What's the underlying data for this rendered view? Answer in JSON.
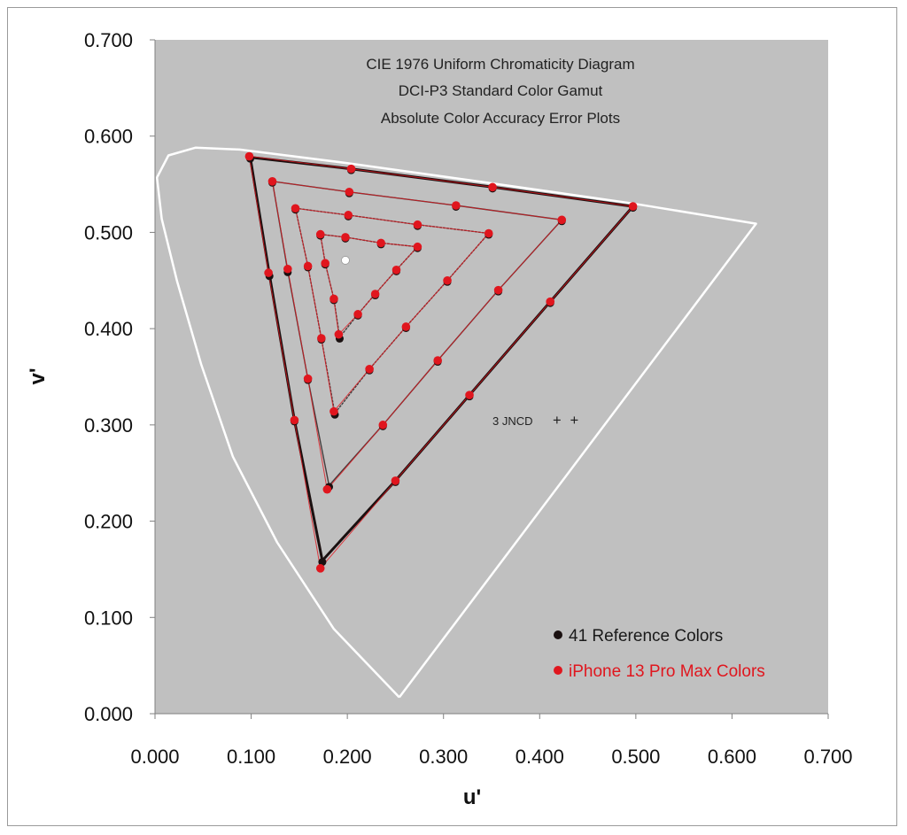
{
  "chart_data": {
    "type": "scatter",
    "title_lines": [
      "CIE 1976 Uniform Chromaticity Diagram",
      "DCI-P3 Standard Color Gamut",
      "Absolute Color Accuracy Error Plots"
    ],
    "xlabel": "u'",
    "ylabel": "v'",
    "xlim": [
      0,
      0.7
    ],
    "ylim": [
      0,
      0.7
    ],
    "xticks": [
      "0.000",
      "0.100",
      "0.200",
      "0.300",
      "0.400",
      "0.500",
      "0.600",
      "0.700"
    ],
    "yticks": [
      "0.000",
      "0.100",
      "0.200",
      "0.300",
      "0.400",
      "0.500",
      "0.600",
      "0.700"
    ],
    "grid": false,
    "legend_placement": "bottom-right",
    "colors": {
      "plot_bg": "#c0c0c0",
      "locus": "#ffffff",
      "reference": "#1a1010",
      "measured": "#e0161e",
      "white_point": "#ffffff"
    },
    "spectral_locus": [
      [
        0.254,
        0.017
      ],
      [
        0.186,
        0.088
      ],
      [
        0.127,
        0.178
      ],
      [
        0.081,
        0.267
      ],
      [
        0.048,
        0.363
      ],
      [
        0.023,
        0.449
      ],
      [
        0.007,
        0.514
      ],
      [
        0.002,
        0.557
      ],
      [
        0.014,
        0.58
      ],
      [
        0.042,
        0.588
      ],
      [
        0.088,
        0.586
      ],
      [
        0.2,
        0.572
      ],
      [
        0.35,
        0.551
      ],
      [
        0.497,
        0.53
      ],
      [
        0.625,
        0.509
      ],
      [
        0.254,
        0.017
      ]
    ],
    "white_point": [
      0.198,
      0.471
    ],
    "series": [
      {
        "name": "41 Reference Colors",
        "rings": [
          [
            [
              0.099,
              0.578
            ],
            [
              0.204,
              0.566
            ],
            [
              0.351,
              0.547
            ],
            [
              0.497,
              0.527
            ],
            [
              0.411,
              0.428
            ],
            [
              0.327,
              0.331
            ],
            [
              0.25,
              0.242
            ],
            [
              0.174,
              0.159
            ],
            [
              0.145,
              0.305
            ],
            [
              0.119,
              0.456
            ]
          ],
          [
            [
              0.122,
              0.553
            ],
            [
              0.202,
              0.542
            ],
            [
              0.313,
              0.528
            ],
            [
              0.423,
              0.513
            ],
            [
              0.357,
              0.44
            ],
            [
              0.294,
              0.367
            ],
            [
              0.237,
              0.3
            ],
            [
              0.181,
              0.237
            ],
            [
              0.159,
              0.348
            ],
            [
              0.138,
              0.46
            ]
          ],
          [
            [
              0.146,
              0.525
            ],
            [
              0.201,
              0.518
            ],
            [
              0.273,
              0.508
            ],
            [
              0.347,
              0.499
            ],
            [
              0.304,
              0.45
            ],
            [
              0.261,
              0.402
            ],
            [
              0.223,
              0.358
            ],
            [
              0.187,
              0.312
            ],
            [
              0.173,
              0.39
            ],
            [
              0.159,
              0.465
            ]
          ],
          [
            [
              0.172,
              0.498
            ],
            [
              0.198,
              0.495
            ],
            [
              0.235,
              0.489
            ],
            [
              0.273,
              0.485
            ],
            [
              0.251,
              0.461
            ],
            [
              0.229,
              0.436
            ],
            [
              0.211,
              0.415
            ],
            [
              0.192,
              0.391
            ],
            [
              0.186,
              0.431
            ],
            [
              0.177,
              0.468
            ]
          ]
        ]
      },
      {
        "name": "iPhone 13 Pro Max Colors",
        "rings": [
          [
            [
              0.098,
              0.579
            ],
            [
              0.204,
              0.566
            ],
            [
              0.351,
              0.547
            ],
            [
              0.497,
              0.527
            ],
            [
              0.411,
              0.428
            ],
            [
              0.327,
              0.331
            ],
            [
              0.25,
              0.242
            ],
            [
              0.172,
              0.151
            ],
            [
              0.145,
              0.305
            ],
            [
              0.118,
              0.458
            ]
          ],
          [
            [
              0.122,
              0.553
            ],
            [
              0.202,
              0.542
            ],
            [
              0.313,
              0.528
            ],
            [
              0.423,
              0.513
            ],
            [
              0.357,
              0.44
            ],
            [
              0.294,
              0.367
            ],
            [
              0.237,
              0.3
            ],
            [
              0.179,
              0.233
            ],
            [
              0.159,
              0.348
            ],
            [
              0.138,
              0.462
            ]
          ],
          [
            [
              0.146,
              0.525
            ],
            [
              0.201,
              0.518
            ],
            [
              0.273,
              0.508
            ],
            [
              0.347,
              0.499
            ],
            [
              0.304,
              0.45
            ],
            [
              0.261,
              0.402
            ],
            [
              0.223,
              0.358
            ],
            [
              0.186,
              0.314
            ],
            [
              0.173,
              0.39
            ],
            [
              0.159,
              0.465
            ]
          ],
          [
            [
              0.172,
              0.498
            ],
            [
              0.198,
              0.495
            ],
            [
              0.235,
              0.489
            ],
            [
              0.273,
              0.485
            ],
            [
              0.251,
              0.461
            ],
            [
              0.229,
              0.436
            ],
            [
              0.211,
              0.415
            ],
            [
              0.191,
              0.394
            ],
            [
              0.186,
              0.431
            ],
            [
              0.177,
              0.468
            ]
          ]
        ]
      }
    ],
    "annotation": {
      "text": "3 JNCD",
      "u": [
        0.418,
        0.436
      ],
      "v": 0.305
    },
    "legend": [
      {
        "label": "41 Reference Colors",
        "color": "#1a1010",
        "text_color": "#1a1a1a"
      },
      {
        "label": "iPhone 13 Pro Max Colors",
        "color": "#e0161e",
        "text_color": "#e0161e"
      }
    ]
  }
}
